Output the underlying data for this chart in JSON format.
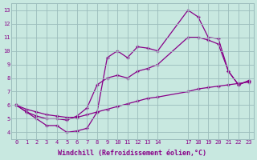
{
  "background_color": "#c8e8e0",
  "grid_color": "#9bbcbc",
  "line_color": "#880088",
  "xlabel": "Windchill (Refroidissement éolien,°C)",
  "ylim": [
    3.5,
    13.5
  ],
  "yticks": [
    4,
    5,
    6,
    7,
    8,
    9,
    10,
    11,
    12,
    13
  ],
  "xticks": [
    0,
    1,
    2,
    3,
    4,
    5,
    6,
    7,
    8,
    9,
    10,
    11,
    12,
    13,
    14,
    17,
    18,
    19,
    20,
    21,
    22,
    23
  ],
  "curve1_x": [
    0,
    1,
    2,
    3,
    4,
    5,
    6,
    7,
    8,
    9,
    10,
    11,
    12,
    13,
    14,
    17,
    18,
    19,
    20,
    21,
    22,
    23
  ],
  "curve1_y": [
    6.0,
    5.7,
    5.5,
    5.3,
    5.2,
    5.1,
    5.1,
    5.3,
    5.5,
    5.7,
    5.9,
    6.1,
    6.3,
    6.5,
    6.6,
    7.0,
    7.2,
    7.3,
    7.4,
    7.5,
    7.6,
    7.7
  ],
  "curve2_x": [
    0,
    1,
    2,
    3,
    4,
    5,
    6,
    7,
    8,
    9,
    10,
    11,
    12,
    13,
    14,
    17,
    18,
    19,
    20,
    21,
    22,
    23
  ],
  "curve2_y": [
    6.0,
    5.5,
    5.0,
    4.5,
    4.5,
    4.0,
    4.1,
    4.3,
    5.5,
    9.5,
    10.0,
    9.5,
    10.3,
    10.2,
    10.0,
    13.0,
    12.5,
    11.0,
    10.9,
    8.5,
    7.5,
    7.8
  ],
  "curve3_x": [
    0,
    1,
    2,
    3,
    4,
    5,
    6,
    7,
    8,
    9,
    10,
    11,
    12,
    13,
    14,
    17,
    18,
    19,
    20,
    21,
    22,
    23
  ],
  "curve3_y": [
    6.0,
    5.5,
    5.2,
    5.0,
    5.0,
    4.9,
    5.2,
    5.8,
    7.5,
    8.0,
    8.2,
    8.0,
    8.5,
    8.7,
    9.0,
    11.0,
    11.0,
    10.8,
    10.5,
    8.5,
    7.5,
    7.8
  ]
}
